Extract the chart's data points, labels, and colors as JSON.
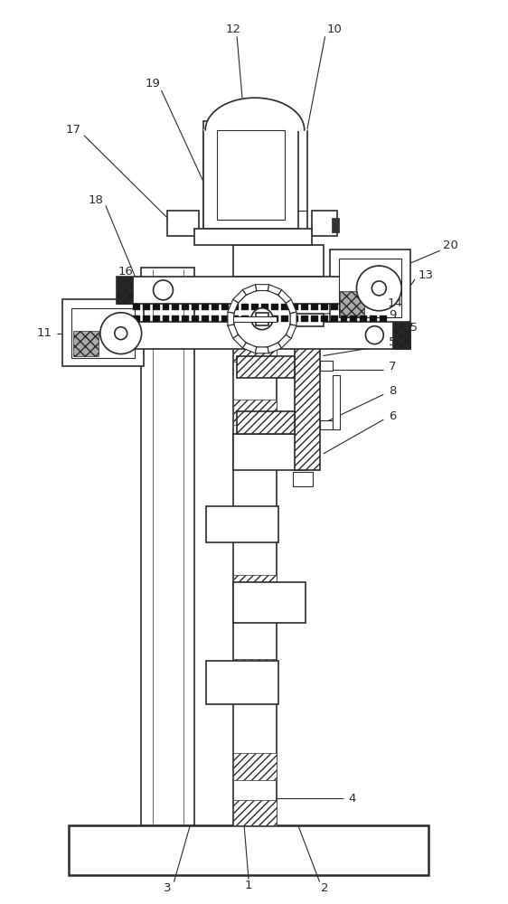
{
  "bg_color": "#ffffff",
  "line_color": "#2a2a2a",
  "fig_width": 5.62,
  "fig_height": 10.0,
  "dpi": 100
}
